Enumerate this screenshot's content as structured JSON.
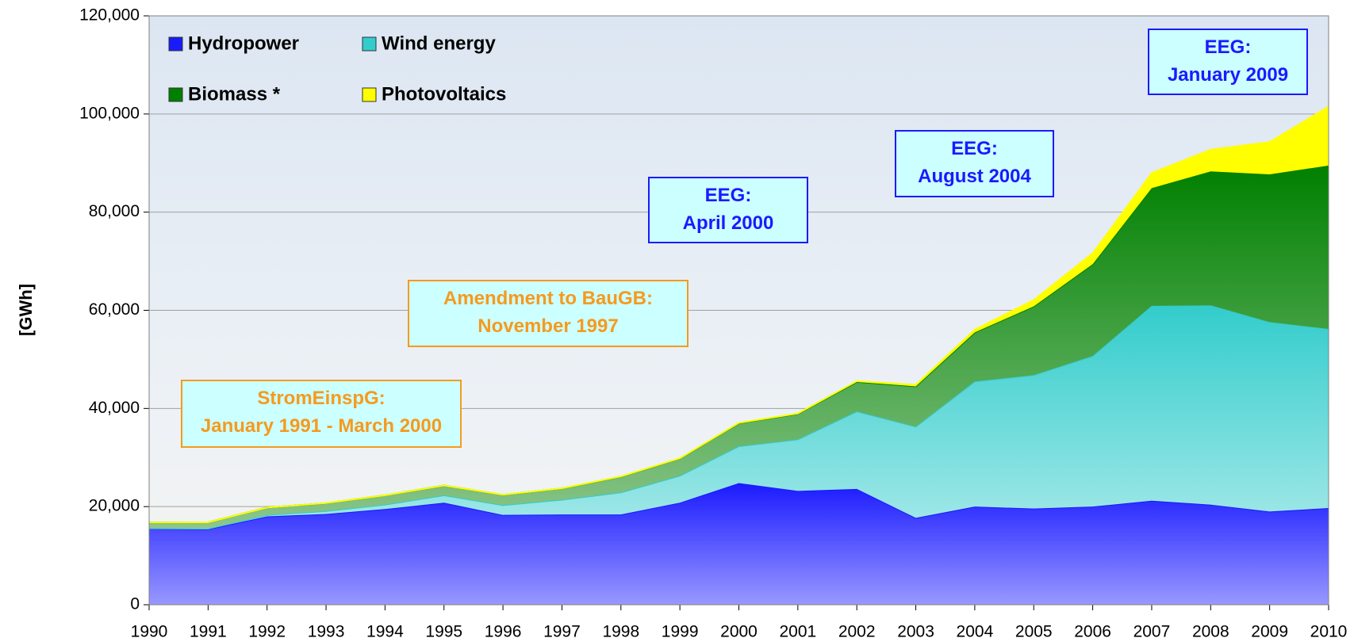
{
  "chart_data": {
    "type": "stacked_area",
    "y_label": "[GWh]",
    "x": [
      1990,
      1991,
      1992,
      1993,
      1994,
      1995,
      1996,
      1997,
      1998,
      1999,
      2000,
      2001,
      2002,
      2003,
      2004,
      2005,
      2006,
      2007,
      2008,
      2009,
      2010
    ],
    "xlim": [
      1990,
      2010
    ],
    "xticks": [
      1990,
      1991,
      1992,
      1993,
      1994,
      1995,
      1996,
      1997,
      1998,
      1999,
      2000,
      2001,
      2002,
      2003,
      2004,
      2005,
      2006,
      2007,
      2008,
      2009,
      2010
    ],
    "ylim": [
      0,
      120000
    ],
    "yticks": [
      0,
      {
        "value": 20000,
        "label": "20,000"
      },
      {
        "value": 40000,
        "label": "40,000"
      },
      {
        "value": 60000,
        "label": "60,000"
      },
      {
        "value": 80000,
        "label": "80,000"
      },
      {
        "value": 100000,
        "label": "100,000"
      },
      {
        "value": 120000,
        "label": "120,000"
      }
    ],
    "grid": true,
    "series": [
      {
        "name": "Hydropower",
        "color": "#1a1aff",
        "values": [
          15500,
          15400,
          18000,
          18500,
          19500,
          20800,
          18300,
          18400,
          18400,
          20800,
          24800,
          23200,
          23600,
          17700,
          20000,
          19600,
          20000,
          21200,
          20400,
          19000,
          19700
        ]
      },
      {
        "name": "Wind energy",
        "color": "#33cccc",
        "values": [
          70,
          100,
          300,
          600,
          900,
          1500,
          2000,
          3000,
          4500,
          5500,
          7500,
          10500,
          15800,
          18600,
          25500,
          27200,
          30700,
          39700,
          40600,
          38600,
          36500
        ]
      },
      {
        "name": "Biomass *",
        "color": "#008000",
        "values": [
          1200,
          1300,
          1500,
          1600,
          1900,
          2000,
          2100,
          2300,
          3200,
          3500,
          4700,
          5200,
          6000,
          8200,
          10000,
          14000,
          18700,
          24000,
          27300,
          30100,
          33300
        ]
      },
      {
        "name": "Photovoltaics",
        "color": "#ffff00",
        "values": [
          1,
          2,
          3,
          6,
          8,
          11,
          16,
          26,
          32,
          42,
          64,
          76,
          162,
          313,
          556,
          1282,
          2220,
          3075,
          4420,
          6583,
          12000
        ]
      }
    ],
    "annotations": [
      {
        "lines": [
          "StromEinspG:",
          "January 1991 - March 2000"
        ],
        "color": "#f59a1e"
      },
      {
        "lines": [
          "Amendment to BauGB:",
          "November 1997"
        ],
        "color": "#f59a1e"
      },
      {
        "lines": [
          "EEG:",
          "April 2000"
        ],
        "color": "#1a1aff"
      },
      {
        "lines": [
          "EEG:",
          "August 2004"
        ],
        "color": "#1a1aff"
      },
      {
        "lines": [
          "EEG:",
          "January 2009"
        ],
        "color": "#1a1aff"
      }
    ]
  }
}
